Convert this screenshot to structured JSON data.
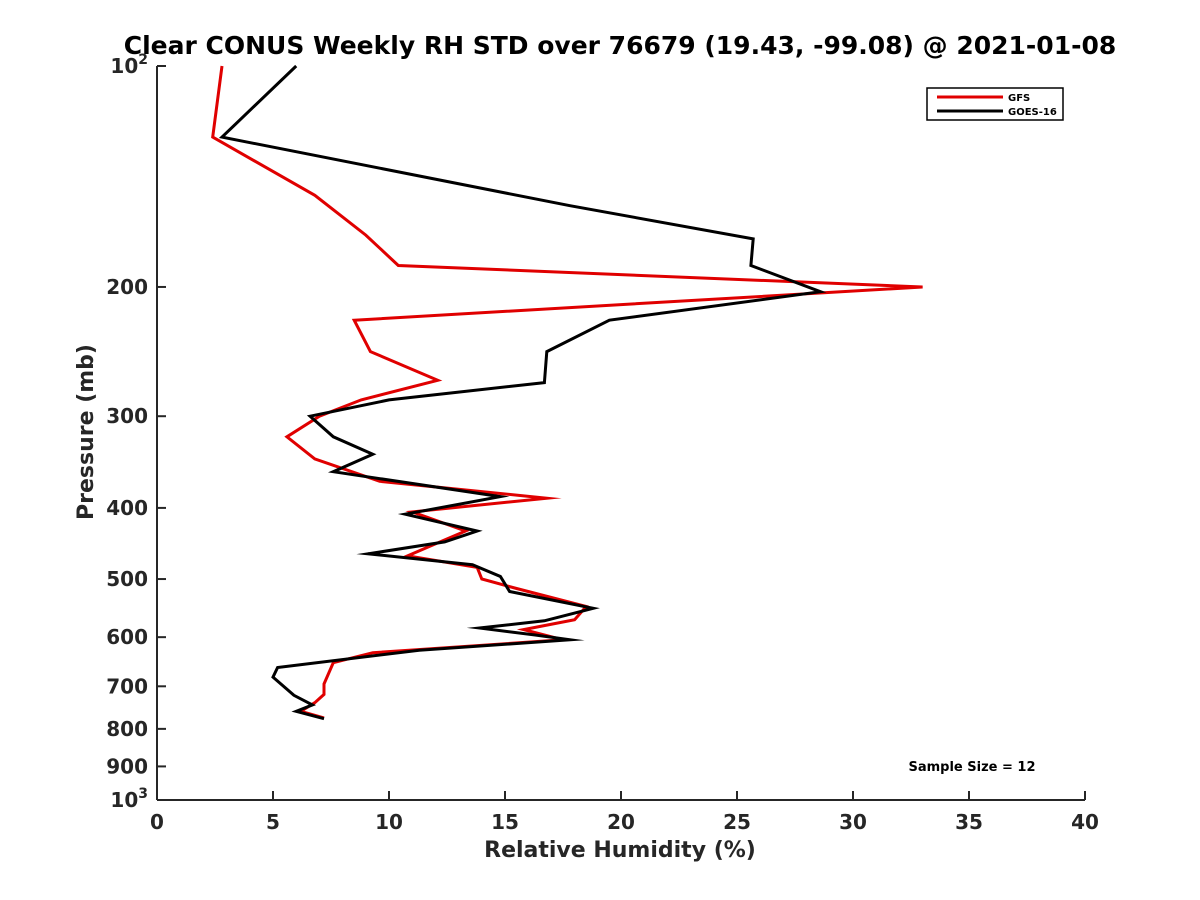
{
  "chart_data": {
    "type": "line",
    "title": "Clear CONUS Weekly RH STD over 76679 (19.43, -99.08) @ 2021-01-08",
    "xlabel": "Relative Humidity (%)",
    "ylabel": "Pressure (mb)",
    "xlim": [
      0,
      40
    ],
    "ylim": [
      100,
      1000
    ],
    "y_scale": "log",
    "y_reversed": true,
    "grid": false,
    "legend_position": "top-right",
    "x_ticks": [
      "0",
      "5",
      "10",
      "15",
      "20",
      "25",
      "30",
      "35",
      "40"
    ],
    "x_tick_values": [
      0,
      5,
      10,
      15,
      20,
      25,
      30,
      35,
      40
    ],
    "y_ticks": [
      {
        "value": 100,
        "base": "10",
        "exp": "2"
      },
      {
        "value": 200,
        "base": "200",
        "exp": ""
      },
      {
        "value": 300,
        "base": "300",
        "exp": ""
      },
      {
        "value": 400,
        "base": "400",
        "exp": ""
      },
      {
        "value": 500,
        "base": "500",
        "exp": ""
      },
      {
        "value": 600,
        "base": "600",
        "exp": ""
      },
      {
        "value": 700,
        "base": "700",
        "exp": ""
      },
      {
        "value": 800,
        "base": "800",
        "exp": ""
      },
      {
        "value": 900,
        "base": "900",
        "exp": ""
      },
      {
        "value": 1000,
        "base": "10",
        "exp": "3"
      }
    ],
    "annotation": "Sample Size = 12",
    "series": [
      {
        "name": "GFS",
        "color": "#e00000",
        "points": [
          [
            2.8,
            100
          ],
          [
            2.4,
            125
          ],
          [
            6.8,
            150
          ],
          [
            9.0,
            170
          ],
          [
            10.4,
            187
          ],
          [
            33.0,
            200
          ],
          [
            8.5,
            222
          ],
          [
            9.2,
            245
          ],
          [
            12.1,
            268
          ],
          [
            8.8,
            285
          ],
          [
            7.0,
            300
          ],
          [
            5.6,
            320
          ],
          [
            6.8,
            343
          ],
          [
            9.6,
            368
          ],
          [
            16.8,
            388
          ],
          [
            11.0,
            405
          ],
          [
            13.3,
            430
          ],
          [
            11.7,
            452
          ],
          [
            10.8,
            465
          ],
          [
            13.8,
            482
          ],
          [
            14.0,
            500
          ],
          [
            15.5,
            515
          ],
          [
            18.5,
            545
          ],
          [
            18.0,
            568
          ],
          [
            15.8,
            586
          ],
          [
            17.5,
            605
          ],
          [
            9.3,
            630
          ],
          [
            7.6,
            650
          ],
          [
            7.2,
            695
          ],
          [
            7.2,
            718
          ],
          [
            6.8,
            737
          ],
          [
            6.2,
            757
          ],
          [
            7.2,
            773
          ]
        ]
      },
      {
        "name": "GOES-16",
        "color": "#000000",
        "points": [
          [
            6.0,
            100
          ],
          [
            2.8,
            125
          ],
          [
            17.8,
            155
          ],
          [
            25.7,
            172
          ],
          [
            25.6,
            187
          ],
          [
            28.6,
            203
          ],
          [
            19.5,
            222
          ],
          [
            16.8,
            245
          ],
          [
            16.7,
            270
          ],
          [
            10.0,
            285
          ],
          [
            6.6,
            300
          ],
          [
            7.6,
            320
          ],
          [
            9.3,
            338
          ],
          [
            7.6,
            357
          ],
          [
            14.8,
            386
          ],
          [
            10.7,
            408
          ],
          [
            13.8,
            430
          ],
          [
            12.4,
            445
          ],
          [
            9.1,
            462
          ],
          [
            13.6,
            478
          ],
          [
            14.8,
            496
          ],
          [
            15.2,
            520
          ],
          [
            18.8,
            548
          ],
          [
            16.7,
            570
          ],
          [
            13.9,
            583
          ],
          [
            16.3,
            596
          ],
          [
            17.8,
            605
          ],
          [
            11.3,
            625
          ],
          [
            5.2,
            660
          ],
          [
            5.0,
            680
          ],
          [
            5.9,
            720
          ],
          [
            6.7,
            742
          ],
          [
            6.0,
            757
          ],
          [
            7.2,
            775
          ]
        ]
      }
    ]
  }
}
